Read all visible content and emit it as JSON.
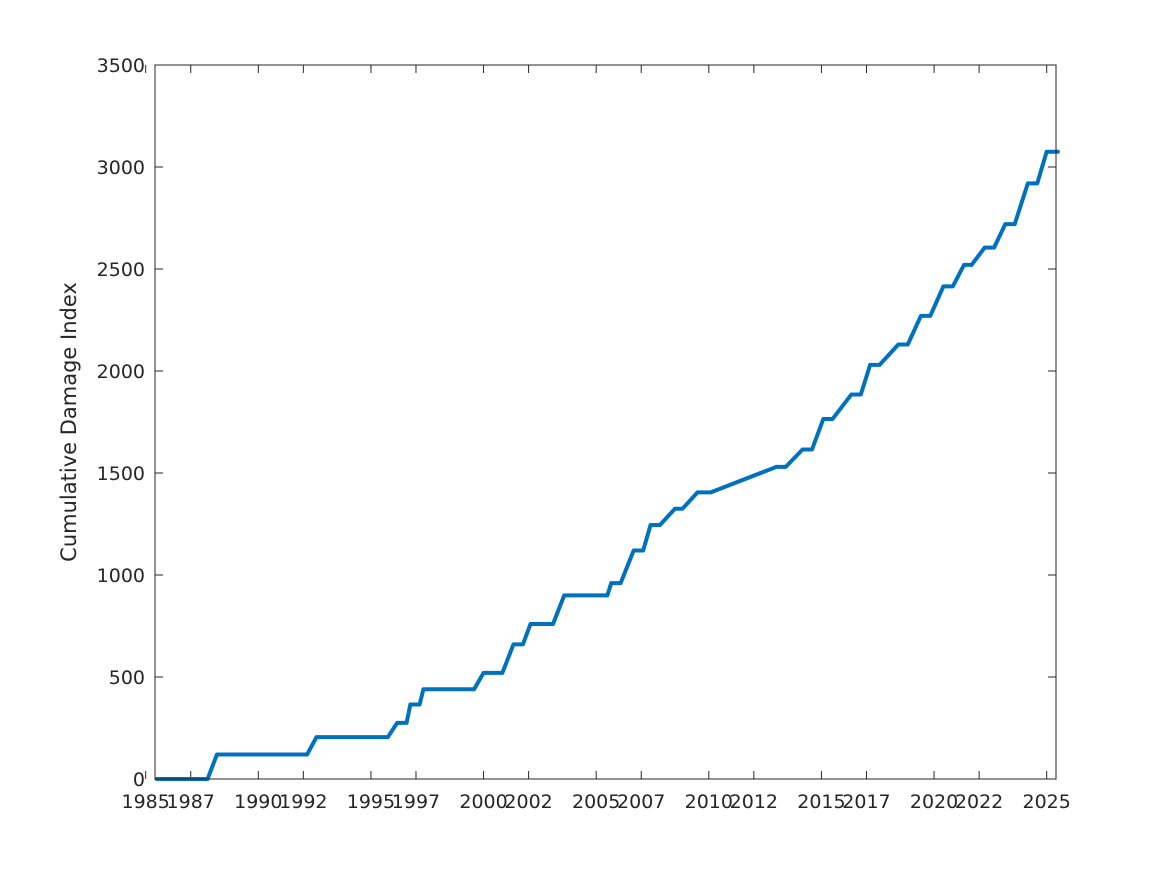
{
  "chart_data": {
    "type": "line",
    "title": "",
    "xlabel": "",
    "ylabel": "Cumulative Damage Index",
    "ylim": [
      0,
      3500
    ],
    "xlim": [
      "1985-06-01",
      "2025-06-01"
    ],
    "grid": false,
    "legend": "none",
    "colors": {
      "line": "#0072BD",
      "axis": "#262626",
      "background": "#ffffff"
    },
    "x_ticks": [
      "1985",
      "1987",
      "1990",
      "1992",
      "1995",
      "1997",
      "2000",
      "2002",
      "2005",
      "2007",
      "2010",
      "2012",
      "2015",
      "2017",
      "2020",
      "2022",
      "2025"
    ],
    "y_ticks": [
      "0",
      "500",
      "1000",
      "1500",
      "2000",
      "2500",
      "3000",
      "3500"
    ],
    "series": [
      {
        "x": [
          "1985-07-01",
          "1987-10-01",
          "1988-03-01",
          "1992-03-01",
          "1992-08-01",
          "1995-10-01",
          "1996-03-01",
          "1996-08-01",
          "1996-10-01",
          "1997-03-01",
          "1997-05-01",
          "1997-10-01",
          "1999-08-01",
          "2000-01-01",
          "2000-11-01",
          "2001-05-01",
          "2001-10-01",
          "2002-02-01",
          "2003-02-01",
          "2003-08-01",
          "2005-03-01",
          "2005-07-01",
          "2005-09-01",
          "2006-02-01",
          "2006-09-01",
          "2007-02-01",
          "2007-06-01",
          "2007-11-01",
          "2008-07-01",
          "2008-11-01",
          "2009-07-01",
          "2010-02-01",
          "2013-01-01",
          "2013-06-01",
          "2014-03-01",
          "2014-08-01",
          "2015-02-01",
          "2015-07-01",
          "2016-05-01",
          "2016-10-01",
          "2017-03-01",
          "2017-08-01",
          "2018-06-01",
          "2018-11-01",
          "2019-06-01",
          "2019-11-01",
          "2020-06-01",
          "2020-11-01",
          "2021-05-01",
          "2021-09-01",
          "2022-04-01",
          "2022-09-01",
          "2023-03-01",
          "2023-08-01",
          "2024-03-01",
          "2024-08-01",
          "2025-01-01",
          "2025-07-01"
        ],
        "y": [
          0,
          0,
          120,
          120,
          205,
          205,
          275,
          275,
          365,
          365,
          440,
          440,
          440,
          520,
          520,
          660,
          660,
          760,
          760,
          900,
          900,
          900,
          960,
          960,
          1120,
          1120,
          1245,
          1245,
          1325,
          1325,
          1405,
          1405,
          1530,
          1530,
          1615,
          1615,
          1765,
          1765,
          1885,
          1885,
          2030,
          2030,
          2130,
          2130,
          2270,
          2270,
          2415,
          2415,
          2520,
          2520,
          2605,
          2605,
          2720,
          2720,
          2920,
          2920,
          3075,
          3075
        ]
      }
    ]
  }
}
